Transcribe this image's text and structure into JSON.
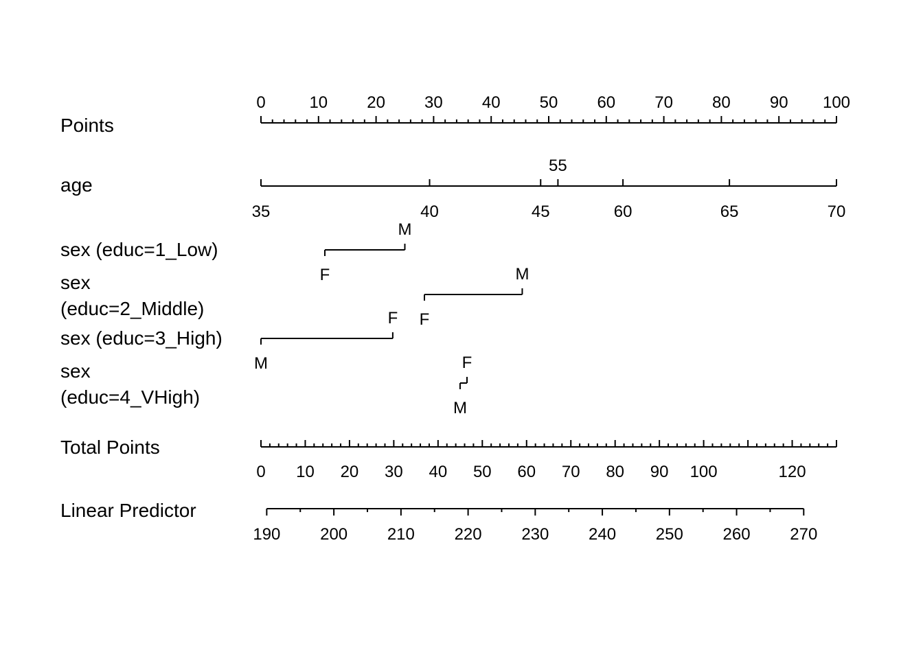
{
  "chart_data": {
    "type": "nomogram",
    "rows": [
      {
        "name": "Points",
        "label_lines": [
          "Points"
        ],
        "kind": "scale",
        "ticks": [
          0,
          10,
          20,
          30,
          40,
          50,
          60,
          70,
          80,
          90,
          100
        ],
        "tick_labels": [
          "0",
          "10",
          "20",
          "30",
          "40",
          "50",
          "60",
          "70",
          "80",
          "90",
          "100"
        ],
        "minor_step": 2,
        "range": [
          0,
          100
        ]
      },
      {
        "name": "age",
        "label_lines": [
          "age"
        ],
        "kind": "variable",
        "points_range": [
          0,
          100
        ],
        "ticks": [
          {
            "label": "35",
            "points": 0
          },
          {
            "label": "40",
            "points": 29.3
          },
          {
            "label": "45",
            "points": 48.6
          },
          {
            "label": "55",
            "points": 51.6,
            "above": true
          },
          {
            "label": "60",
            "points": 62.9
          },
          {
            "label": "65",
            "points": 81.4
          },
          {
            "label": "70",
            "points": 100
          }
        ]
      },
      {
        "name": "sex (educ=1_Low)",
        "label_lines": [
          "sex (educ=1_Low)"
        ],
        "kind": "categorical",
        "levels": [
          {
            "label": "F",
            "points": 11.1
          },
          {
            "label": "M",
            "points": 25.0
          }
        ]
      },
      {
        "name": "sex (educ=2_Middle)",
        "label_lines": [
          "sex",
          "(educ=2_Middle)"
        ],
        "kind": "categorical",
        "levels": [
          {
            "label": "F",
            "points": 28.4
          },
          {
            "label": "M",
            "points": 45.4
          }
        ]
      },
      {
        "name": "sex (educ=3_High)",
        "label_lines": [
          "sex (educ=3_High)"
        ],
        "kind": "categorical",
        "levels": [
          {
            "label": "M",
            "points": 0
          },
          {
            "label": "F",
            "points": 22.9
          }
        ]
      },
      {
        "name": "sex (educ=4_VHigh)",
        "label_lines": [
          "sex",
          "(educ=4_VHigh)"
        ],
        "kind": "categorical",
        "levels": [
          {
            "label": "M",
            "points": 34.6
          },
          {
            "label": "F",
            "points": 35.8
          }
        ]
      },
      {
        "name": "Total Points",
        "label_lines": [
          "Total Points"
        ],
        "kind": "scale",
        "range": [
          0,
          130
        ],
        "ticks": [
          0,
          10,
          20,
          30,
          40,
          50,
          60,
          70,
          80,
          90,
          100,
          120
        ],
        "tick_labels": [
          "0",
          "10",
          "20",
          "30",
          "40",
          "50",
          "60",
          "70",
          "80",
          "90",
          "100",
          "120"
        ],
        "minor_step": 2
      },
      {
        "name": "Linear Predictor",
        "label_lines": [
          "Linear Predictor"
        ],
        "kind": "scale",
        "total_points_range": [
          1.3,
          122.6
        ],
        "range": [
          190,
          270
        ],
        "ticks": [
          190,
          200,
          210,
          220,
          230,
          240,
          250,
          260,
          270
        ],
        "tick_labels": [
          "190",
          "200",
          "210",
          "220",
          "230",
          "240",
          "250",
          "260",
          "270"
        ],
        "minor_step": 5
      }
    ]
  }
}
